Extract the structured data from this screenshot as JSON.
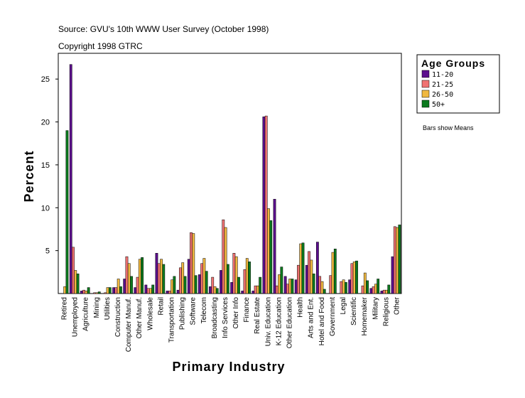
{
  "chart_data": {
    "type": "bar",
    "title": "Source: GVU's 10th WWW User Survey (October 1998)",
    "subtitle": "Copyright 1998 GTRC",
    "x_label": "Primary Industry",
    "y_label": "Percent",
    "legend_title": "Age Groups",
    "legend": "right",
    "note": "Bars show Means",
    "categories": [
      "Retired",
      "Unemployed",
      "Agriculture",
      "Mining",
      "Utilities",
      "Construction",
      "Computer Manuf.",
      "Other Manuf.",
      "Wholesale",
      "Retail",
      "Transportation",
      "Publishing",
      "Software",
      "Telecom",
      "Broadcasting",
      "Info Services",
      "Other Info",
      "Finance",
      "Real Estate",
      "Univ. Education",
      "K-12 Education",
      "Other Education",
      "Health",
      "Arts and Ent.",
      "Hotel and Food",
      "Government",
      "Legal",
      "Scientific",
      "Homemaker",
      "Military",
      "Religious",
      "Other"
    ],
    "series": [
      {
        "name": "11-20",
        "color": "#5c0f8e",
        "values": [
          0,
          26.7,
          0.3,
          0,
          0,
          0.7,
          1.7,
          0.7,
          1.0,
          4.7,
          0.3,
          0.4,
          4.0,
          2.2,
          0.8,
          2.7,
          1.3,
          0.3,
          0.3,
          20.6,
          11.0,
          2.0,
          1.6,
          3.3,
          6.0,
          0,
          0,
          1.6,
          0,
          0.6,
          0.3,
          4.3
        ]
      },
      {
        "name": "21-25",
        "color": "#f07272",
        "values": [
          0,
          5.4,
          0.4,
          0.1,
          0.1,
          0.7,
          4.3,
          1.9,
          0.6,
          3.5,
          0.3,
          3.0,
          7.1,
          3.5,
          1.9,
          8.6,
          4.7,
          2.8,
          0.9,
          20.7,
          0.9,
          1.1,
          3.3,
          4.9,
          2.0,
          2.1,
          1.4,
          3.5,
          0.9,
          0.8,
          0.4,
          7.8
        ]
      },
      {
        "name": "26-50",
        "color": "#f0b840",
        "values": [
          0.8,
          2.7,
          0.3,
          0.1,
          0.7,
          1.7,
          3.5,
          4.0,
          0.6,
          4.0,
          1.6,
          3.6,
          7.0,
          4.1,
          0.8,
          7.7,
          4.3,
          4.1,
          0.9,
          9.9,
          2.2,
          1.7,
          5.8,
          3.9,
          1.4,
          4.8,
          1.6,
          3.7,
          2.4,
          1.1,
          0.4,
          7.7
        ]
      },
      {
        "name": "50+",
        "color": "#0b7a1e",
        "values": [
          19.0,
          2.3,
          0.7,
          0.2,
          0.7,
          0.8,
          2.0,
          4.2,
          1.0,
          3.4,
          2.0,
          2.0,
          2.1,
          2.6,
          0.6,
          3.4,
          1.9,
          3.7,
          1.9,
          8.5,
          3.1,
          1.7,
          5.9,
          2.3,
          0.5,
          5.2,
          1.3,
          3.8,
          1.5,
          1.7,
          1.0,
          8.0
        ]
      }
    ],
    "ylim": [
      0,
      28
    ],
    "yticks": [
      5,
      10,
      15,
      20,
      25
    ]
  }
}
